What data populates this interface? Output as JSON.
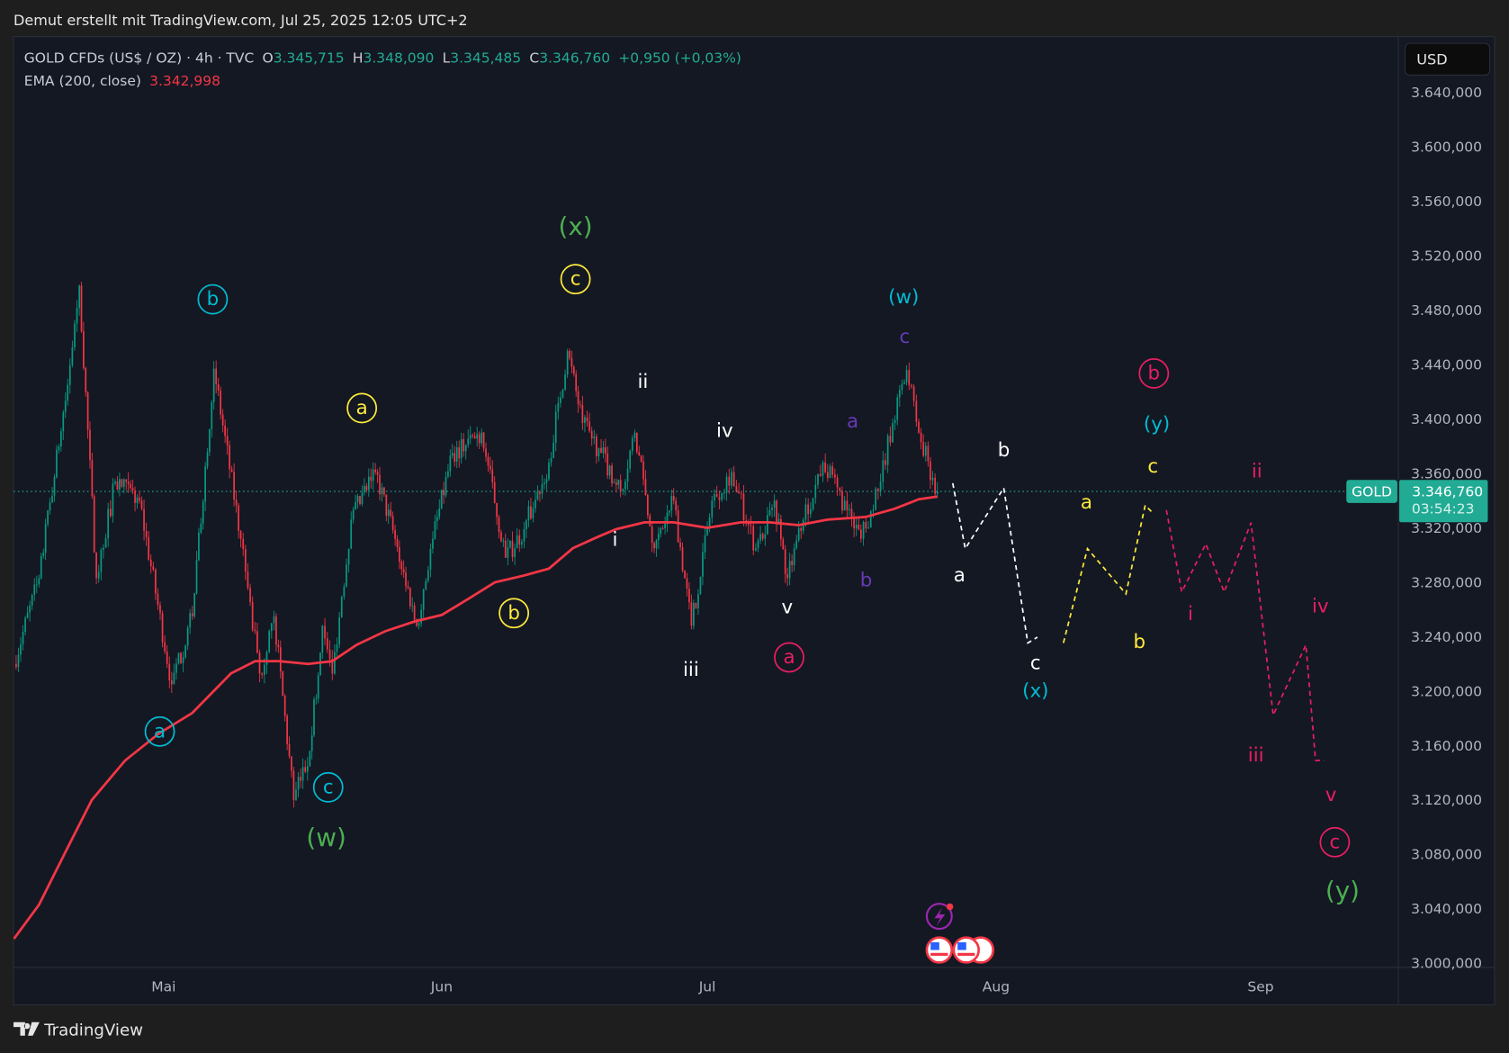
{
  "watermark": "Demut erstellt mit TradingView.com, Jul 25, 2025 12:05 UTC+2",
  "legend": {
    "symbol": "GOLD CFDs (US$ / OZ) · 4h · TVC",
    "o_label": "O",
    "o": "3.345,715",
    "h_label": "H",
    "h": "3.348,090",
    "l_label": "L",
    "l": "3.345,485",
    "c_label": "C",
    "c": "3.346,760",
    "change": "+0,950 (+0,03%)",
    "ema_label": "EMA (200, close)",
    "ema_value": "3.342,998"
  },
  "currency_button": "USD",
  "price_label": {
    "symbol": "GOLD",
    "price": "3.346,760",
    "countdown": "03:54:23"
  },
  "footer_logo": "TradingView",
  "colors": {
    "up": "#089981",
    "down": "#f23645",
    "ema": "#f23645",
    "accent": "#22ab94",
    "green": "#4caf50",
    "cyan": "#00bcd4",
    "yellow": "#ffeb3b",
    "white": "#ffffff",
    "purple": "#673ab7",
    "pink": "#e91e63"
  },
  "chart_data": {
    "type": "candlestick",
    "title": "GOLD CFDs (US$ / OZ) · 4h · TVC",
    "x_unit": "days since 2025-05-01",
    "x_ticks": [
      {
        "label": "Mai",
        "day": 0
      },
      {
        "label": "Jun",
        "day": 31
      },
      {
        "label": "Jul",
        "day": 61
      },
      {
        "label": "Aug",
        "day": 92
      },
      {
        "label": "Sep",
        "day": 123
      }
    ],
    "ylim": [
      3000,
      3640
    ],
    "y_ticks": [
      "3.640,000",
      "3.600,000",
      "3.560,000",
      "3.520,000",
      "3.480,000",
      "3.440,000",
      "3.400,000",
      "3.360,000",
      "3.320,000",
      "3.280,000",
      "3.240,000",
      "3.200,000",
      "3.160,000",
      "3.120,000",
      "3.080,000",
      "3.040,000",
      "3.000,000"
    ],
    "y_tick_values": [
      3640,
      3600,
      3560,
      3520,
      3480,
      3440,
      3400,
      3360,
      3320,
      3280,
      3240,
      3200,
      3160,
      3120,
      3080,
      3040,
      3000
    ],
    "last_price": 3346.76,
    "price_path": [
      [
        -16.7,
        3220
      ],
      [
        -13.9,
        3283
      ],
      [
        -10.7,
        3425
      ],
      [
        -9.4,
        3498
      ],
      [
        -7.5,
        3283
      ],
      [
        -5.4,
        3354
      ],
      [
        -2.7,
        3340
      ],
      [
        0.9,
        3205
      ],
      [
        3.2,
        3255
      ],
      [
        5.6,
        3437
      ],
      [
        8.6,
        3312
      ],
      [
        10.7,
        3213
      ],
      [
        12.3,
        3255
      ],
      [
        14.5,
        3120
      ],
      [
        16.3,
        3156
      ],
      [
        17.7,
        3248
      ],
      [
        18.8,
        3213
      ],
      [
        20.9,
        3326
      ],
      [
        23.6,
        3361
      ],
      [
        25.8,
        3312
      ],
      [
        28.2,
        3248
      ],
      [
        30.0,
        3312
      ],
      [
        32.2,
        3375
      ],
      [
        35.5,
        3390
      ],
      [
        38.2,
        3298
      ],
      [
        40.3,
        3319
      ],
      [
        43.1,
        3368
      ],
      [
        45.2,
        3450
      ],
      [
        46.9,
        3397
      ],
      [
        49.0,
        3375
      ],
      [
        51.2,
        3347
      ],
      [
        52.8,
        3390
      ],
      [
        55.0,
        3305
      ],
      [
        57.2,
        3340
      ],
      [
        59.2,
        3248
      ],
      [
        61.5,
        3340
      ],
      [
        63.6,
        3361
      ],
      [
        66.2,
        3305
      ],
      [
        68.2,
        3340
      ],
      [
        69.6,
        3283
      ],
      [
        71.3,
        3326
      ],
      [
        73.4,
        3368
      ],
      [
        76.0,
        3333
      ],
      [
        77.5,
        3312
      ],
      [
        79.6,
        3354
      ],
      [
        80.9,
        3397
      ],
      [
        82.4,
        3436
      ],
      [
        83.7,
        3390
      ],
      [
        85.7,
        3346.76
      ]
    ],
    "ema": {
      "label": "EMA (200, close)",
      "points": [
        [
          -16.7,
          3018
        ],
        [
          -13.9,
          3043
        ],
        [
          -10.7,
          3085
        ],
        [
          -8.0,
          3120
        ],
        [
          -4.3,
          3149
        ],
        [
          -0.5,
          3169
        ],
        [
          3.2,
          3184
        ],
        [
          7.5,
          3213
        ],
        [
          10.2,
          3222
        ],
        [
          12.9,
          3222
        ],
        [
          16.1,
          3220
        ],
        [
          18.8,
          3222
        ],
        [
          21.5,
          3234
        ],
        [
          24.7,
          3244
        ],
        [
          27.9,
          3251
        ],
        [
          31.0,
          3256
        ],
        [
          34.3,
          3269
        ],
        [
          37.0,
          3280
        ],
        [
          40.3,
          3285
        ],
        [
          43.1,
          3290
        ],
        [
          45.8,
          3305
        ],
        [
          48.5,
          3313
        ],
        [
          50.7,
          3319
        ],
        [
          53.9,
          3324
        ],
        [
          57.2,
          3324
        ],
        [
          61.0,
          3320
        ],
        [
          64.6,
          3324
        ],
        [
          67.7,
          3324
        ],
        [
          70.8,
          3322
        ],
        [
          73.9,
          3326
        ],
        [
          78.0,
          3328
        ],
        [
          81.1,
          3334
        ],
        [
          83.7,
          3341
        ],
        [
          85.7,
          3343
        ]
      ]
    },
    "annotations": [
      {
        "text": "(x)",
        "color": "green",
        "circled": false,
        "big": true
      },
      {
        "text": "(w)",
        "color": "green",
        "circled": false,
        "big": true
      },
      {
        "text": "(y)",
        "color": "green",
        "circled": false,
        "big": true
      },
      {
        "text": "b",
        "color": "cyan",
        "circled": true
      },
      {
        "text": "a",
        "color": "cyan",
        "circled": true
      },
      {
        "text": "c",
        "color": "cyan",
        "circled": true
      },
      {
        "text": "c",
        "color": "yellow",
        "circled": true
      },
      {
        "text": "a",
        "color": "yellow",
        "circled": true
      },
      {
        "text": "b",
        "color": "yellow",
        "circled": true
      },
      {
        "text": "ii",
        "color": "white",
        "circled": false
      },
      {
        "text": "iv",
        "color": "white",
        "circled": false
      },
      {
        "text": "i",
        "color": "white",
        "circled": false
      },
      {
        "text": "iii",
        "color": "white",
        "circled": false
      },
      {
        "text": "v",
        "color": "white",
        "circled": false
      },
      {
        "text": "(w)",
        "color": "cyan",
        "circled": false
      },
      {
        "text": "(y)",
        "color": "cyan",
        "circled": false
      },
      {
        "text": "(x)",
        "color": "cyan",
        "circled": false
      },
      {
        "text": "c",
        "color": "purple",
        "circled": false
      },
      {
        "text": "a",
        "color": "purple",
        "circled": false
      },
      {
        "text": "b",
        "color": "purple",
        "circled": false
      },
      {
        "text": "a",
        "color": "pink",
        "circled": true
      },
      {
        "text": "b",
        "color": "pink",
        "circled": true
      },
      {
        "text": "c",
        "color": "pink",
        "circled": true
      },
      {
        "text": "b",
        "color": "white",
        "circled": false
      },
      {
        "text": "a",
        "color": "white",
        "circled": false
      },
      {
        "text": "c",
        "color": "white",
        "circled": false
      },
      {
        "text": "a",
        "color": "yellow",
        "circled": false
      },
      {
        "text": "c",
        "color": "yellow",
        "circled": false
      },
      {
        "text": "b",
        "color": "yellow",
        "circled": false
      },
      {
        "text": "ii",
        "color": "pink",
        "circled": false
      },
      {
        "text": "i",
        "color": "pink",
        "circled": false
      },
      {
        "text": "iv",
        "color": "pink",
        "circled": false
      },
      {
        "text": "iii",
        "color": "pink",
        "circled": false
      },
      {
        "text": "v",
        "color": "pink",
        "circled": false
      }
    ],
    "projections": [
      {
        "name": "white-projection",
        "color": "white"
      },
      {
        "name": "yellow-projection",
        "color": "yellow"
      },
      {
        "name": "pink-projection",
        "color": "pink"
      }
    ]
  }
}
